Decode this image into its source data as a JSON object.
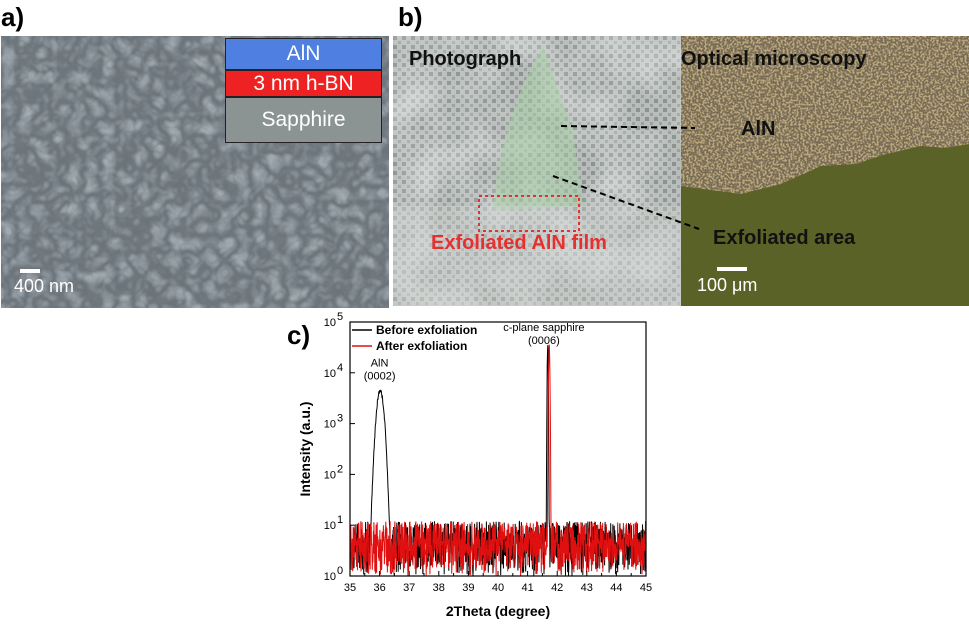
{
  "panel_labels": {
    "a": "a)",
    "b": "b)",
    "c": "c)"
  },
  "panel_a": {
    "layers": [
      {
        "label": "AlN",
        "color": "#4f7fe0"
      },
      {
        "label": "3 nm h-BN",
        "color": "#ee2222"
      },
      {
        "label": "Sapphire",
        "color": "#8b9493"
      }
    ],
    "scale_bar": "400 nm"
  },
  "panel_b": {
    "photo_title": "Photograph",
    "micro_title": "Optical microscopy",
    "film_label": "Exfoliated AlN film",
    "aln_label": "AlN",
    "exfoliated_label": "Exfoliated area",
    "scale_bar": "100 μm"
  },
  "chart_data": {
    "type": "line",
    "xlabel": "2Theta (degree)",
    "ylabel": "Intensity (a.u.)",
    "xlim": [
      35,
      45
    ],
    "ylim": [
      1,
      100000
    ],
    "yscale": "log",
    "x_ticks": [
      "35",
      "36",
      "37",
      "38",
      "39",
      "40",
      "41",
      "42",
      "43",
      "44",
      "45"
    ],
    "y_ticks": [
      {
        "base": "10",
        "exp": "0",
        "value": 1
      },
      {
        "base": "10",
        "exp": "1",
        "value": 10
      },
      {
        "base": "10",
        "exp": "2",
        "value": 100
      },
      {
        "base": "10",
        "exp": "3",
        "value": 1000
      },
      {
        "base": "10",
        "exp": "4",
        "value": 10000
      },
      {
        "base": "10",
        "exp": "5",
        "value": 100000
      }
    ],
    "series": [
      {
        "name": "Before exfoliation",
        "color": "#000000",
        "peaks": [
          {
            "x": 36.02,
            "y": 5000,
            "w": 0.09
          },
          {
            "x": 41.68,
            "y": 38000,
            "w": 0.012
          }
        ],
        "baseline": 3.5,
        "noise_low": 1,
        "noise_high": 12
      },
      {
        "name": "After exfoliation",
        "color": "#e01010",
        "peaks": [
          {
            "x": 41.73,
            "y": 38000,
            "w": 0.015
          }
        ],
        "baseline": 3.5,
        "noise_low": 1,
        "noise_high": 12
      }
    ],
    "annotations": [
      {
        "lines": [
          "AlN",
          "(0002)"
        ],
        "x": 36.0,
        "y": 7000
      },
      {
        "lines": [
          "c-plane sapphire",
          "(0006)"
        ],
        "x": 41.55,
        "y": 35000
      }
    ],
    "legend_position": "top-left"
  }
}
